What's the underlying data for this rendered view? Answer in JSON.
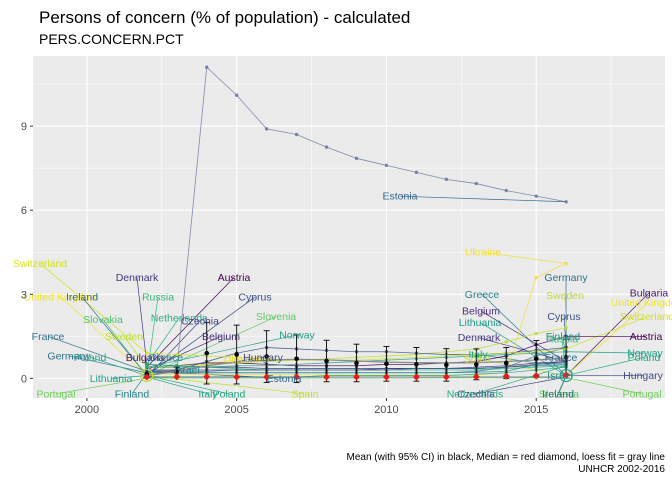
{
  "chart_data": {
    "type": "line",
    "title": "Persons of concern (% of population) - calculated",
    "subtitle": "PERS.CONCERN.PCT",
    "caption_line1": "Mean (with 95% CI) in black, Median = red diamond, loess fit = gray line",
    "caption_line2": "UNHCR 2002-2016",
    "xlim": [
      1998.2,
      2019.3
    ],
    "ylim": [
      -0.7,
      11.5
    ],
    "x_ticks": [
      2000,
      2005,
      2010,
      2015
    ],
    "y_ticks": [
      0,
      3,
      6,
      9
    ],
    "grid": true,
    "colors": {
      "panel": "#ebebeb",
      "grid": "#ffffff",
      "mean": "#000000",
      "median": "#e41a1c",
      "loess": "#8c8c8c"
    },
    "years": [
      2002,
      2003,
      2004,
      2005,
      2006,
      2007,
      2008,
      2009,
      2010,
      2011,
      2012,
      2013,
      2014,
      2015,
      2016
    ],
    "mean": {
      "values": [
        0.15,
        0.22,
        0.9,
        0.85,
        0.78,
        0.7,
        0.62,
        0.55,
        0.52,
        0.5,
        0.48,
        0.5,
        0.55,
        0.7,
        0.75
      ],
      "ci_low": [
        0.02,
        0.05,
        -0.2,
        -0.2,
        -0.15,
        -0.15,
        -0.12,
        -0.12,
        -0.1,
        -0.1,
        -0.1,
        -0.05,
        0.0,
        0.05,
        0.1
      ],
      "ci_high": [
        0.3,
        0.4,
        2.0,
        1.9,
        1.7,
        1.55,
        1.36,
        1.22,
        1.14,
        1.1,
        1.06,
        1.05,
        1.1,
        1.35,
        1.4
      ]
    },
    "median": [
      0.05,
      0.06,
      0.06,
      0.05,
      0.05,
      0.05,
      0.05,
      0.05,
      0.05,
      0.05,
      0.05,
      0.06,
      0.08,
      0.1,
      0.12
    ],
    "loess": [
      0.1,
      0.25,
      0.45,
      0.58,
      0.65,
      0.68,
      0.66,
      0.62,
      0.58,
      0.56,
      0.55,
      0.56,
      0.6,
      0.66,
      0.72
    ],
    "series": [
      {
        "name": "Estonia",
        "color": "#7079a5",
        "values": [
          0.25,
          0.3,
          11.1,
          10.1,
          8.9,
          8.7,
          8.25,
          7.85,
          7.6,
          7.35,
          7.1,
          6.95,
          6.7,
          6.5,
          6.3
        ]
      },
      {
        "name": "Ukraine",
        "color": "#f2e02b",
        "values": [
          0.15,
          0.15,
          0.15,
          0.14,
          0.14,
          0.13,
          0.13,
          0.12,
          0.12,
          0.12,
          0.12,
          0.12,
          0.2,
          3.6,
          4.1
        ]
      },
      {
        "name": "Austria",
        "color": "#440154",
        "values": [
          0.4,
          0.45,
          0.55,
          0.55,
          0.5,
          0.45,
          0.45,
          0.45,
          0.5,
          0.5,
          0.55,
          0.6,
          0.8,
          1.2,
          1.5
        ]
      },
      {
        "name": "Sweden",
        "color": "#b8de29",
        "values": [
          0.4,
          0.45,
          0.5,
          0.55,
          0.6,
          0.65,
          0.7,
          0.75,
          0.8,
          0.85,
          0.95,
          1.05,
          1.3,
          1.6,
          1.8
        ]
      },
      {
        "name": "Germany",
        "color": "#2d708e",
        "values": [
          0.2,
          0.2,
          0.2,
          0.2,
          0.2,
          0.2,
          0.2,
          0.2,
          0.2,
          0.2,
          0.2,
          0.25,
          0.4,
          0.8,
          1.1
        ]
      },
      {
        "name": "Cyprus",
        "color": "#3b528b",
        "values": [
          0.1,
          0.3,
          0.6,
          0.9,
          1.1,
          1.05,
          1.0,
          0.95,
          0.95,
          0.9,
          0.85,
          0.85,
          0.9,
          1.0,
          1.1
        ]
      },
      {
        "name": "Switzerland",
        "color": "#d2e21b",
        "values": [
          0.9,
          0.85,
          0.8,
          0.75,
          0.7,
          0.65,
          0.65,
          0.65,
          0.7,
          0.75,
          0.8,
          0.85,
          0.9,
          0.95,
          1.05
        ]
      },
      {
        "name": "Norway",
        "color": "#1fa187",
        "values": [
          0.4,
          0.4,
          0.4,
          0.45,
          0.45,
          0.5,
          0.55,
          0.6,
          0.65,
          0.7,
          0.75,
          0.8,
          0.85,
          0.9,
          0.95
        ]
      },
      {
        "name": "Denmark",
        "color": "#453781",
        "values": [
          0.5,
          0.45,
          0.4,
          0.4,
          0.35,
          0.35,
          0.35,
          0.35,
          0.35,
          0.35,
          0.35,
          0.4,
          0.45,
          0.55,
          0.6
        ]
      },
      {
        "name": "Belgium",
        "color": "#472d7b",
        "values": [
          0.3,
          0.3,
          0.3,
          0.3,
          0.3,
          0.3,
          0.3,
          0.3,
          0.35,
          0.35,
          0.35,
          0.35,
          0.4,
          0.5,
          0.6
        ]
      },
      {
        "name": "Netherlands",
        "color": "#29af7f",
        "values": [
          0.5,
          0.45,
          0.4,
          0.35,
          0.3,
          0.3,
          0.3,
          0.3,
          0.3,
          0.3,
          0.3,
          0.3,
          0.35,
          0.4,
          0.45
        ]
      },
      {
        "name": "France",
        "color": "#2c728e",
        "values": [
          0.25,
          0.25,
          0.25,
          0.3,
          0.3,
          0.3,
          0.3,
          0.3,
          0.3,
          0.35,
          0.35,
          0.35,
          0.4,
          0.45,
          0.5
        ]
      },
      {
        "name": "Italy",
        "color": "#20a386",
        "values": [
          0.05,
          0.05,
          0.05,
          0.05,
          0.05,
          0.05,
          0.1,
          0.1,
          0.1,
          0.1,
          0.1,
          0.15,
          0.2,
          0.3,
          0.4
        ]
      },
      {
        "name": "Czechia",
        "color": "#404688",
        "values": [
          0.05,
          0.05,
          0.05,
          0.05,
          0.05,
          0.05,
          0.05,
          0.05,
          0.05,
          0.05,
          0.05,
          0.05,
          0.05,
          0.05,
          0.05
        ]
      },
      {
        "name": "Portugal",
        "color": "#6ece58",
        "values": [
          0.01,
          0.01,
          0.01,
          0.01,
          0.01,
          0.01,
          0.01,
          0.01,
          0.01,
          0.01,
          0.02,
          0.02,
          0.02,
          0.02,
          0.03
        ]
      },
      {
        "name": "Finland",
        "color": "#25848e",
        "values": [
          0.2,
          0.2,
          0.2,
          0.2,
          0.2,
          0.2,
          0.2,
          0.2,
          0.2,
          0.2,
          0.2,
          0.22,
          0.25,
          0.5,
          0.55
        ]
      }
    ],
    "labels_left": [
      {
        "text": "Switzerland",
        "color": "#d2e21b",
        "y": 4.1
      },
      {
        "text": "Denmark",
        "color": "#453781",
        "y": 3.6
      },
      {
        "text": "Austria",
        "color": "#440154",
        "y": 3.6
      },
      {
        "text": "United Kingdom",
        "color": "#f1e51d",
        "y": 2.9
      },
      {
        "text": "Russia",
        "color": "#35b779",
        "y": 2.9
      },
      {
        "text": "Cyprus",
        "color": "#3b528b",
        "y": 2.9
      },
      {
        "text": "Ireland",
        "color": "#31688e",
        "y": 2.9
      },
      {
        "text": "Netherlands",
        "color": "#29af7f",
        "y": 2.15
      },
      {
        "text": "Slovenia",
        "color": "#5ec962",
        "y": 2.2
      },
      {
        "text": "Slovakia",
        "color": "#4ac16d",
        "y": 2.1
      },
      {
        "text": "Czechia",
        "color": "#404688",
        "y": 2.05
      },
      {
        "text": "Norway",
        "color": "#1fa187",
        "y": 1.55
      },
      {
        "text": "Sweden",
        "color": "#b8de29",
        "y": 1.5
      },
      {
        "text": "Belgium",
        "color": "#472d7b",
        "y": 1.5
      },
      {
        "text": "France",
        "color": "#2c728e",
        "y": 1.5
      },
      {
        "text": "Bulgaria",
        "color": "#48186a",
        "y": 0.75
      },
      {
        "text": "Ukraine",
        "color": "#f2e02b",
        "y": 0.7
      },
      {
        "text": "Germany",
        "color": "#2d708e",
        "y": 0.8
      },
      {
        "text": "Greece",
        "color": "#27808e",
        "y": 0.75
      },
      {
        "text": "Hungary",
        "color": "#3e4a89",
        "y": 0.75
      },
      {
        "text": "Poland",
        "color": "#22a884",
        "y": 0.75
      },
      {
        "text": "Israel",
        "color": "#26828e",
        "y": 0.3
      },
      {
        "text": "Estonia",
        "color": "#31688e",
        "y": 0.0
      },
      {
        "text": "Lithuania",
        "color": "#1f9e89",
        "y": 0.0
      },
      {
        "text": "Italy",
        "color": "#20a386",
        "y": -0.55
      },
      {
        "text": "Spain",
        "color": "#bddf26",
        "y": -0.55
      },
      {
        "text": "Finland",
        "color": "#25848e",
        "y": -0.55
      },
      {
        "text": "Poland",
        "color": "#22a884",
        "y": -0.55
      },
      {
        "text": "Portugal",
        "color": "#6ece58",
        "y": -0.55
      }
    ],
    "labels_right": [
      {
        "text": "Estonia",
        "color": "#31688e",
        "y": 6.5
      },
      {
        "text": "Ukraine",
        "color": "#f2e02b",
        "y": 4.5
      },
      {
        "text": "Germany",
        "color": "#2d708e",
        "y": 3.6
      },
      {
        "text": "Bulgaria",
        "color": "#48186a",
        "y": 3.05
      },
      {
        "text": "Greece",
        "color": "#27808e",
        "y": 3.0
      },
      {
        "text": "Sweden",
        "color": "#b8de29",
        "y": 2.95
      },
      {
        "text": "United Kingdom",
        "color": "#f1e51d",
        "y": 2.7
      },
      {
        "text": "Belgium",
        "color": "#472d7b",
        "y": 2.4
      },
      {
        "text": "Cyprus",
        "color": "#3b528b",
        "y": 2.2
      },
      {
        "text": "Switzerland",
        "color": "#d2e21b",
        "y": 2.2
      },
      {
        "text": "Lithuania",
        "color": "#1f9e89",
        "y": 2.0
      },
      {
        "text": "Finland",
        "color": "#25848e",
        "y": 1.5
      },
      {
        "text": "Austria",
        "color": "#440154",
        "y": 1.5
      },
      {
        "text": "Denmark",
        "color": "#453781",
        "y": 1.45
      },
      {
        "text": "Russia",
        "color": "#35b779",
        "y": 1.4
      },
      {
        "text": "Norway",
        "color": "#1fa187",
        "y": 0.9
      },
      {
        "text": "Italy",
        "color": "#20a386",
        "y": 0.85
      },
      {
        "text": "France",
        "color": "#2c728e",
        "y": 0.75
      },
      {
        "text": "Poland",
        "color": "#22a884",
        "y": 0.75
      },
      {
        "text": "Spain",
        "color": "#bddf26",
        "y": 0.7
      },
      {
        "text": "Israel",
        "color": "#26828e",
        "y": 0.1
      },
      {
        "text": "Hungary",
        "color": "#3e4a89",
        "y": 0.1
      },
      {
        "text": "Czechia",
        "color": "#404688",
        "y": -0.55
      },
      {
        "text": "Slovenia",
        "color": "#5ec962",
        "y": -0.55
      },
      {
        "text": "Portugal",
        "color": "#6ece58",
        "y": -0.55
      },
      {
        "text": "Netherlands",
        "color": "#29af7f",
        "y": -0.55
      },
      {
        "text": "Ireland",
        "color": "#31688e",
        "y": -0.55
      }
    ]
  }
}
